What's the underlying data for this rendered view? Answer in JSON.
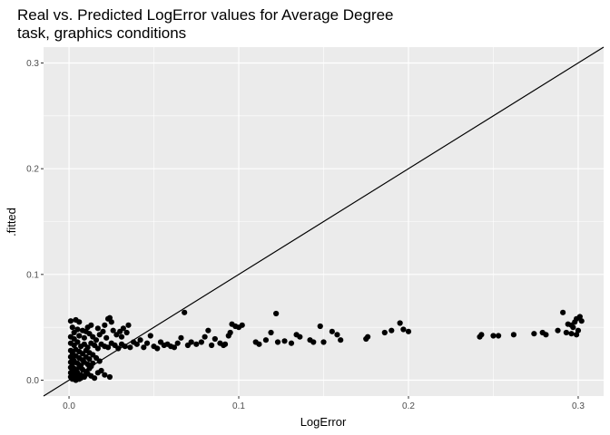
{
  "chart_data": {
    "type": "scatter",
    "title": "Real vs. Predicted LogError values for Average Degree task, graphics conditions",
    "title_lines": [
      "Real vs. Predicted LogError values for Average Degree",
      "task, graphics conditions"
    ],
    "xlabel": "LogError",
    "ylabel": ".fitted",
    "xlim": [
      -0.015,
      0.315
    ],
    "ylim": [
      -0.015,
      0.315
    ],
    "x_ticks": [
      0.0,
      0.1,
      0.2,
      0.3
    ],
    "x_tick_labels": [
      "0.0",
      "0.1",
      "0.2",
      "0.3"
    ],
    "y_ticks": [
      0.0,
      0.1,
      0.2,
      0.3
    ],
    "y_tick_labels": [
      "0.0",
      "0.1",
      "0.2",
      "0.3"
    ],
    "grid": true,
    "reference_line": {
      "slope": 1,
      "intercept": 0
    },
    "colors": {
      "panel": "#ebebeb",
      "grid": "#ffffff",
      "points": "#000000",
      "line": "#000000"
    },
    "points": [
      [
        0.001,
        0.056
      ],
      [
        0.004,
        0.057
      ],
      [
        0.006,
        0.055
      ],
      [
        0.002,
        0.05
      ],
      [
        0.005,
        0.048
      ],
      [
        0.003,
        0.045
      ],
      [
        0.008,
        0.047
      ],
      [
        0.01,
        0.046
      ],
      [
        0.001,
        0.041
      ],
      [
        0.003,
        0.039
      ],
      [
        0.006,
        0.042
      ],
      [
        0.009,
        0.04
      ],
      [
        0.012,
        0.044
      ],
      [
        0.014,
        0.041
      ],
      [
        0.016,
        0.038
      ],
      [
        0.018,
        0.043
      ],
      [
        0.02,
        0.046
      ],
      [
        0.022,
        0.04
      ],
      [
        0.011,
        0.05
      ],
      [
        0.013,
        0.052
      ],
      [
        0.017,
        0.049
      ],
      [
        0.021,
        0.052
      ],
      [
        0.023,
        0.058
      ],
      [
        0.024,
        0.059
      ],
      [
        0.025,
        0.055
      ],
      [
        0.026,
        0.047
      ],
      [
        0.028,
        0.043
      ],
      [
        0.03,
        0.046
      ],
      [
        0.031,
        0.041
      ],
      [
        0.032,
        0.049
      ],
      [
        0.034,
        0.045
      ],
      [
        0.035,
        0.052
      ],
      [
        0.001,
        0.035
      ],
      [
        0.003,
        0.033
      ],
      [
        0.005,
        0.036
      ],
      [
        0.007,
        0.032
      ],
      [
        0.009,
        0.034
      ],
      [
        0.011,
        0.031
      ],
      [
        0.013,
        0.035
      ],
      [
        0.015,
        0.033
      ],
      [
        0.017,
        0.03
      ],
      [
        0.019,
        0.034
      ],
      [
        0.021,
        0.032
      ],
      [
        0.023,
        0.031
      ],
      [
        0.025,
        0.035
      ],
      [
        0.027,
        0.033
      ],
      [
        0.029,
        0.03
      ],
      [
        0.031,
        0.034
      ],
      [
        0.033,
        0.032
      ],
      [
        0.036,
        0.031
      ],
      [
        0.038,
        0.036
      ],
      [
        0.04,
        0.034
      ],
      [
        0.042,
        0.038
      ],
      [
        0.044,
        0.031
      ],
      [
        0.046,
        0.035
      ],
      [
        0.048,
        0.042
      ],
      [
        0.05,
        0.032
      ],
      [
        0.052,
        0.03
      ],
      [
        0.054,
        0.036
      ],
      [
        0.056,
        0.033
      ],
      [
        0.058,
        0.034
      ],
      [
        0.06,
        0.032
      ],
      [
        0.062,
        0.031
      ],
      [
        0.064,
        0.035
      ],
      [
        0.066,
        0.04
      ],
      [
        0.068,
        0.064
      ],
      [
        0.07,
        0.033
      ],
      [
        0.072,
        0.036
      ],
      [
        0.075,
        0.034
      ],
      [
        0.078,
        0.036
      ],
      [
        0.08,
        0.041
      ],
      [
        0.082,
        0.047
      ],
      [
        0.084,
        0.033
      ],
      [
        0.086,
        0.039
      ],
      [
        0.089,
        0.035
      ],
      [
        0.092,
        0.034
      ],
      [
        0.094,
        0.042
      ],
      [
        0.096,
        0.053
      ],
      [
        0.098,
        0.051
      ],
      [
        0.1,
        0.05
      ],
      [
        0.102,
        0.052
      ],
      [
        0.095,
        0.045
      ],
      [
        0.091,
        0.033
      ],
      [
        0.11,
        0.036
      ],
      [
        0.112,
        0.034
      ],
      [
        0.116,
        0.038
      ],
      [
        0.119,
        0.045
      ],
      [
        0.122,
        0.063
      ],
      [
        0.123,
        0.036
      ],
      [
        0.127,
        0.037
      ],
      [
        0.131,
        0.035
      ],
      [
        0.134,
        0.043
      ],
      [
        0.136,
        0.041
      ],
      [
        0.142,
        0.038
      ],
      [
        0.144,
        0.036
      ],
      [
        0.148,
        0.051
      ],
      [
        0.15,
        0.036
      ],
      [
        0.155,
        0.046
      ],
      [
        0.158,
        0.043
      ],
      [
        0.16,
        0.038
      ],
      [
        0.175,
        0.039
      ],
      [
        0.176,
        0.041
      ],
      [
        0.186,
        0.045
      ],
      [
        0.19,
        0.047
      ],
      [
        0.195,
        0.054
      ],
      [
        0.197,
        0.048
      ],
      [
        0.2,
        0.046
      ],
      [
        0.242,
        0.041
      ],
      [
        0.243,
        0.043
      ],
      [
        0.25,
        0.042
      ],
      [
        0.253,
        0.042
      ],
      [
        0.262,
        0.043
      ],
      [
        0.274,
        0.044
      ],
      [
        0.279,
        0.045
      ],
      [
        0.281,
        0.043
      ],
      [
        0.288,
        0.047
      ],
      [
        0.291,
        0.064
      ],
      [
        0.293,
        0.045
      ],
      [
        0.294,
        0.053
      ],
      [
        0.296,
        0.044
      ],
      [
        0.297,
        0.05
      ],
      [
        0.298,
        0.055
      ],
      [
        0.299,
        0.058
      ],
      [
        0.3,
        0.047
      ],
      [
        0.301,
        0.06
      ],
      [
        0.302,
        0.056
      ],
      [
        0.299,
        0.043
      ],
      [
        0.296,
        0.052
      ],
      [
        0.001,
        0.028
      ],
      [
        0.002,
        0.026
      ],
      [
        0.004,
        0.029
      ],
      [
        0.006,
        0.027
      ],
      [
        0.008,
        0.025
      ],
      [
        0.01,
        0.028
      ],
      [
        0.012,
        0.026
      ],
      [
        0.001,
        0.022
      ],
      [
        0.002,
        0.02
      ],
      [
        0.004,
        0.023
      ],
      [
        0.006,
        0.021
      ],
      [
        0.008,
        0.019
      ],
      [
        0.01,
        0.022
      ],
      [
        0.012,
        0.02
      ],
      [
        0.014,
        0.024
      ],
      [
        0.016,
        0.021
      ],
      [
        0.001,
        0.017
      ],
      [
        0.002,
        0.015
      ],
      [
        0.003,
        0.018
      ],
      [
        0.005,
        0.016
      ],
      [
        0.007,
        0.014
      ],
      [
        0.009,
        0.017
      ],
      [
        0.011,
        0.015
      ],
      [
        0.013,
        0.013
      ],
      [
        0.001,
        0.012
      ],
      [
        0.002,
        0.01
      ],
      [
        0.003,
        0.011
      ],
      [
        0.004,
        0.009
      ],
      [
        0.006,
        0.012
      ],
      [
        0.008,
        0.01
      ],
      [
        0.01,
        0.008
      ],
      [
        0.012,
        0.011
      ],
      [
        0.001,
        0.007
      ],
      [
        0.002,
        0.005
      ],
      [
        0.003,
        0.006
      ],
      [
        0.004,
        0.004
      ],
      [
        0.005,
        0.007
      ],
      [
        0.007,
        0.005
      ],
      [
        0.009,
        0.003
      ],
      [
        0.011,
        0.006
      ],
      [
        0.001,
        0.003
      ],
      [
        0.002,
        0.001
      ],
      [
        0.003,
        0.002
      ],
      [
        0.004,
        0.0
      ],
      [
        0.005,
        0.003
      ],
      [
        0.006,
        0.001
      ],
      [
        0.007,
        0.002
      ],
      [
        0.008,
        0.004
      ],
      [
        0.013,
        0.004
      ],
      [
        0.015,
        0.002
      ],
      [
        0.017,
        0.007
      ],
      [
        0.019,
        0.009
      ],
      [
        0.021,
        0.005
      ],
      [
        0.024,
        0.003
      ],
      [
        0.014,
        0.016
      ],
      [
        0.018,
        0.018
      ]
    ]
  }
}
